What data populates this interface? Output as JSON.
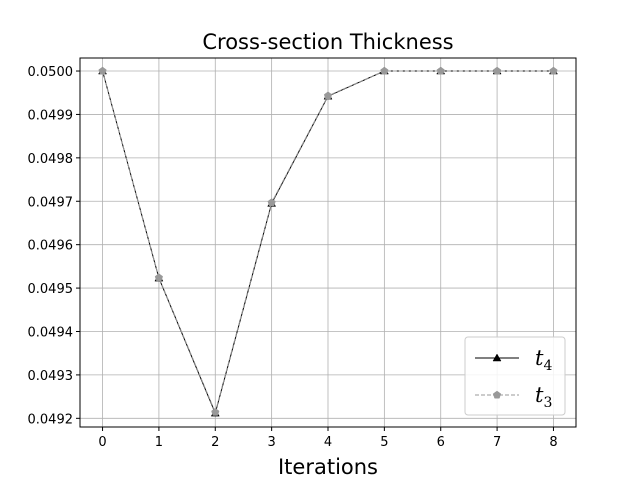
{
  "chart_data": {
    "type": "line",
    "title": "Cross-section Thickness",
    "xlabel": "Iterations",
    "ylabel": "",
    "x": [
      0,
      1,
      2,
      3,
      4,
      5,
      6,
      7,
      8
    ],
    "xticks": [
      "0",
      "1",
      "2",
      "3",
      "4",
      "5",
      "6",
      "7",
      "8"
    ],
    "yticks": [
      "0.0492",
      "0.0493",
      "0.0494",
      "0.0495",
      "0.0496",
      "0.0497",
      "0.0498",
      "0.0499",
      "0.0500"
    ],
    "xlim": [
      -0.4,
      8.4
    ],
    "ylim": [
      0.04918,
      0.05003
    ],
    "grid": true,
    "legend_position": "lower-right",
    "series": [
      {
        "name": "t4",
        "name_base": "t",
        "name_sub": "4",
        "values": [
          0.05,
          0.049523,
          0.049212,
          0.049695,
          0.049942,
          0.05,
          0.05,
          0.05,
          0.05
        ],
        "color": "#000000",
        "linestyle": "solid",
        "marker": "triangle"
      },
      {
        "name": "t3",
        "name_base": "t",
        "name_sub": "3",
        "values": [
          0.05,
          0.049524,
          0.049214,
          0.049697,
          0.049943,
          0.05,
          0.05,
          0.05,
          0.05
        ],
        "color": "#999999",
        "linestyle": "dashed",
        "marker": "pentagon"
      }
    ]
  }
}
